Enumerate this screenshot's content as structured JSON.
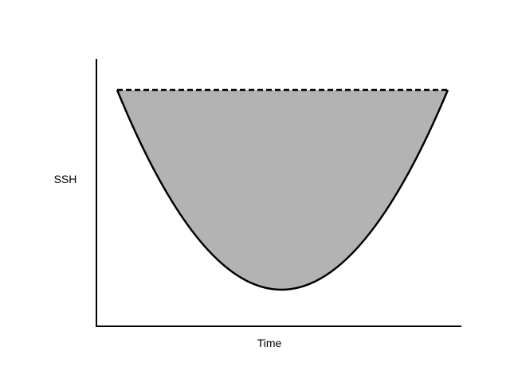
{
  "labels": {
    "y_axis": "SSH",
    "x_axis": "Time"
  },
  "colors": {
    "fill": "#b3b3b3",
    "stroke": "#000000"
  }
}
